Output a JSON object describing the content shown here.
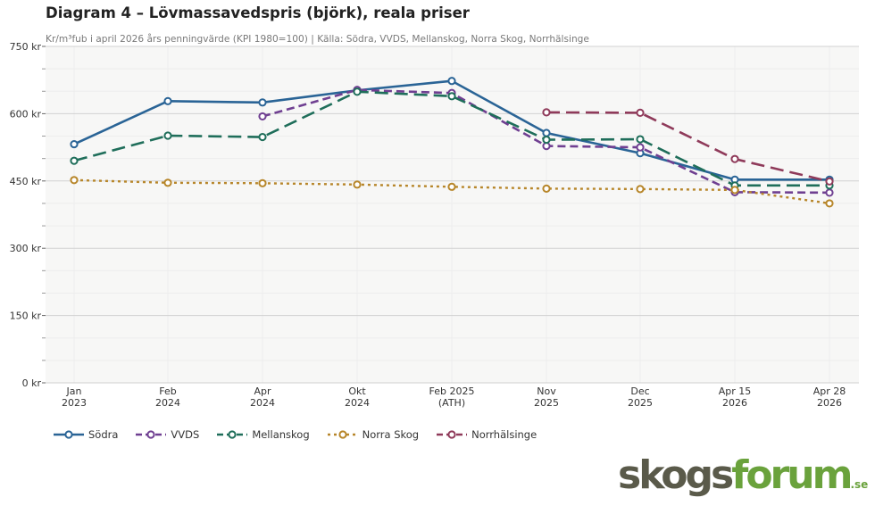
{
  "title": "Diagram 4 – Lövmassavedspris (björk), reala priser",
  "subtitle": "Kr/m³fub i april 2026 års penningvärde (KPI 1980=100)  |  Källa: Södra, VVDS, Mellanskog, Norra Skog, Norrhälsinge",
  "logo": {
    "word1": "skogs",
    "word2": "forum",
    "suffix": ".se"
  },
  "chart_data": {
    "type": "line",
    "title": "Diagram 4 – Lövmassavedspris (björk), reala priser",
    "xlabel": "",
    "ylabel": "Kr/m³fub",
    "ylim": [
      0,
      750
    ],
    "grid": true,
    "legend_position": "bottom-left",
    "categories": [
      [
        "Jan",
        "2023"
      ],
      [
        "Feb",
        "2024"
      ],
      [
        "Apr",
        "2024"
      ],
      [
        "Okt",
        "2024"
      ],
      [
        "Feb 2025",
        "(ATH)"
      ],
      [
        "Nov",
        "2025"
      ],
      [
        "Dec",
        "2025"
      ],
      [
        "Apr 15",
        "2026"
      ],
      [
        "Apr 28",
        "2026"
      ]
    ],
    "y_ticks": [
      {
        "value": 0,
        "label": "0 kr"
      },
      {
        "value": 150,
        "label": "150 kr"
      },
      {
        "value": 300,
        "label": "300 kr"
      },
      {
        "value": 450,
        "label": "450 kr"
      },
      {
        "value": 600,
        "label": "600 kr"
      },
      {
        "value": 750,
        "label": "750 kr"
      }
    ],
    "series": [
      {
        "name": "Södra",
        "color": "#2a6496",
        "dash": "solid",
        "values": [
          532,
          628,
          625,
          652,
          673,
          557,
          512,
          453,
          453
        ]
      },
      {
        "name": "VVDS",
        "color": "#6f3f91",
        "dash": "dash",
        "values": [
          null,
          null,
          594,
          653,
          646,
          528,
          525,
          425,
          424
        ]
      },
      {
        "name": "Mellanskog",
        "color": "#1f6e5a",
        "dash": "longdash",
        "values": [
          495,
          551,
          548,
          649,
          639,
          542,
          543,
          440,
          440
        ]
      },
      {
        "name": "Norra Skog",
        "color": "#b7862a",
        "dash": "dot",
        "values": [
          452,
          446,
          445,
          442,
          437,
          433,
          432,
          430,
          400
        ]
      },
      {
        "name": "Norrhälsinge",
        "color": "#8f3a5a",
        "dash": "longdash",
        "values": [
          null,
          null,
          null,
          null,
          null,
          603,
          602,
          499,
          449
        ]
      }
    ]
  }
}
